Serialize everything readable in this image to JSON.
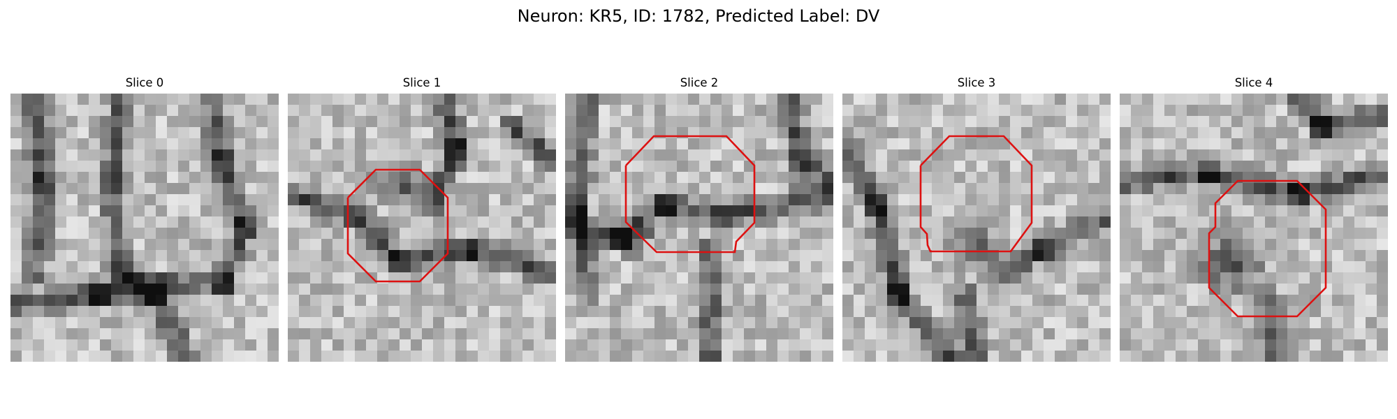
{
  "figure": {
    "title": "Neuron: KR5, ID: 1782, Predicted Label: DV"
  },
  "roi_color": "#dd1111",
  "colormap": "gray",
  "slices": [
    {
      "title": "Slice 0",
      "has_roi": false,
      "seed": 11
    },
    {
      "title": "Slice 1",
      "has_roi": true,
      "seed": 23
    },
    {
      "title": "Slice 2",
      "has_roi": true,
      "seed": 37
    },
    {
      "title": "Slice 3",
      "has_roi": true,
      "seed": 41
    },
    {
      "title": "Slice 4",
      "has_roi": true,
      "seed": 59
    }
  ]
}
